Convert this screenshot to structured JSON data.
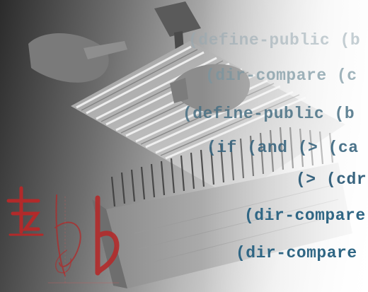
{
  "code_lines": [
    "(define-public (b",
    "(dir-compare (c",
    "(define-public (b",
    "(if (and (> (ca",
    "(> (cdr",
    "(dir-compare",
    "(dir-compare"
  ],
  "colors": {
    "code_text": "#2f6684",
    "logo_red": "#b22a2a"
  },
  "icons": {
    "photo": "nail-board-hammer-photo",
    "logo": "flat-b-music-logo"
  }
}
